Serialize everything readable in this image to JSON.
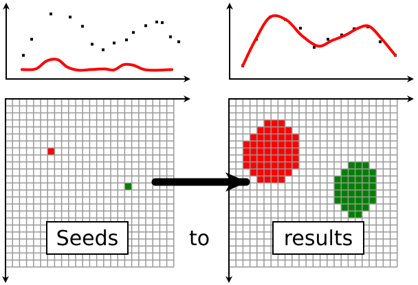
{
  "labels": {
    "seeds": "Seeds",
    "to": "to",
    "results": "results"
  },
  "colors": {
    "red": "#ff0000",
    "green": "#008000",
    "grid": "#999999",
    "axis": "#000000"
  },
  "left_plot": {
    "dots": [
      [
        0.6,
        2.6
      ],
      [
        1.2,
        5.2
      ],
      [
        2.6,
        9.3
      ],
      [
        4,
        8.8
      ],
      [
        4.9,
        7.3
      ],
      [
        5.6,
        4.4
      ],
      [
        6.4,
        3.5
      ],
      [
        7.2,
        4.6
      ],
      [
        8.1,
        5.1
      ],
      [
        8.6,
        6.3
      ],
      [
        9.5,
        7.4
      ],
      [
        10.3,
        8.0
      ],
      [
        10.7,
        7.9
      ],
      [
        11.3,
        5.6
      ],
      [
        11.9,
        4.8
      ]
    ],
    "curve": [
      [
        0.5,
        0.3
      ],
      [
        1.5,
        0.4
      ],
      [
        2.3,
        1.7
      ],
      [
        3.1,
        1.9
      ],
      [
        3.8,
        0.7
      ],
      [
        4.6,
        0.2
      ],
      [
        5.5,
        0.3
      ],
      [
        6.5,
        0.4
      ],
      [
        7.2,
        0.25
      ],
      [
        7.9,
        1.1
      ],
      [
        8.6,
        1.0
      ],
      [
        9.4,
        0.3
      ],
      [
        10.3,
        0.2
      ],
      [
        11.4,
        0.3
      ]
    ]
  },
  "right_plot": {
    "dots": [
      [
        0.3,
        0.9
      ],
      [
        1.3,
        5.2
      ],
      [
        2.3,
        8.8
      ],
      [
        3.4,
        8.4
      ],
      [
        4.5,
        7.0
      ],
      [
        5.5,
        3.9
      ],
      [
        6.5,
        5.2
      ],
      [
        7.5,
        5.9
      ],
      [
        8.4,
        6.9
      ],
      [
        9.4,
        7.2
      ],
      [
        10.3,
        4.8
      ],
      [
        11.4,
        2.6
      ]
    ],
    "curve": [
      [
        0.3,
        0.9
      ],
      [
        1.2,
        5.0
      ],
      [
        2.3,
        8.8
      ],
      [
        3.5,
        8.3
      ],
      [
        4.6,
        5.8
      ],
      [
        5.8,
        4.1
      ],
      [
        6.8,
        5.0
      ],
      [
        7.8,
        5.9
      ],
      [
        8.7,
        7.0
      ],
      [
        9.5,
        7.3
      ],
      [
        10.4,
        5.3
      ],
      [
        11.4,
        2.6
      ]
    ]
  },
  "grid": {
    "cols": 24,
    "rows": 24
  },
  "seeds": [
    {
      "col": 6,
      "row": 7,
      "color": "red"
    },
    {
      "col": 17,
      "row": 12,
      "color": "green"
    }
  ],
  "results": {
    "red_region": [
      [
        3,
        6
      ],
      [
        3,
        7
      ],
      [
        3,
        8
      ],
      [
        4,
        5
      ],
      [
        4,
        6
      ],
      [
        4,
        7
      ],
      [
        4,
        8
      ],
      [
        4,
        9
      ],
      [
        5,
        4
      ],
      [
        5,
        5
      ],
      [
        5,
        6
      ],
      [
        5,
        7
      ],
      [
        5,
        8
      ],
      [
        5,
        9
      ],
      [
        5,
        10
      ],
      [
        6,
        3
      ],
      [
        6,
        4
      ],
      [
        6,
        5
      ],
      [
        6,
        6
      ],
      [
        6,
        7
      ],
      [
        6,
        8
      ],
      [
        6,
        9
      ],
      [
        6,
        10
      ],
      [
        7,
        3
      ],
      [
        7,
        4
      ],
      [
        7,
        5
      ],
      [
        7,
        6
      ],
      [
        7,
        7
      ],
      [
        7,
        8
      ],
      [
        7,
        9
      ],
      [
        7,
        10
      ],
      [
        8,
        3
      ],
      [
        8,
        4
      ],
      [
        8,
        5
      ],
      [
        8,
        6
      ],
      [
        8,
        7
      ],
      [
        8,
        8
      ],
      [
        8,
        9
      ],
      [
        8,
        10
      ],
      [
        9,
        3
      ],
      [
        9,
        4
      ],
      [
        9,
        5
      ],
      [
        9,
        6
      ],
      [
        9,
        7
      ],
      [
        9,
        8
      ],
      [
        9,
        9
      ],
      [
        9,
        10
      ],
      [
        10,
        4
      ],
      [
        10,
        5
      ],
      [
        10,
        6
      ],
      [
        10,
        7
      ],
      [
        10,
        8
      ],
      [
        10,
        9
      ],
      [
        11,
        5
      ],
      [
        11,
        6
      ],
      [
        11,
        7
      ],
      [
        11,
        8
      ]
    ],
    "green_region": [
      [
        9,
        17
      ],
      [
        9,
        18
      ],
      [
        9,
        19
      ],
      [
        10,
        16
      ],
      [
        10,
        17
      ],
      [
        10,
        18
      ],
      [
        10,
        19
      ],
      [
        10,
        20
      ],
      [
        11,
        15
      ],
      [
        11,
        16
      ],
      [
        11,
        17
      ],
      [
        11,
        18
      ],
      [
        11,
        19
      ],
      [
        11,
        20
      ],
      [
        12,
        15
      ],
      [
        12,
        16
      ],
      [
        12,
        17
      ],
      [
        12,
        18
      ],
      [
        12,
        19
      ],
      [
        12,
        20
      ],
      [
        13,
        15
      ],
      [
        13,
        16
      ],
      [
        13,
        17
      ],
      [
        13,
        18
      ],
      [
        13,
        19
      ],
      [
        13,
        20
      ],
      [
        14,
        15
      ],
      [
        14,
        16
      ],
      [
        14,
        17
      ],
      [
        14,
        18
      ],
      [
        14,
        19
      ],
      [
        14,
        20
      ],
      [
        15,
        16
      ],
      [
        15,
        17
      ],
      [
        15,
        18
      ],
      [
        15,
        19
      ],
      [
        16,
        17
      ],
      [
        16,
        18
      ]
    ]
  }
}
